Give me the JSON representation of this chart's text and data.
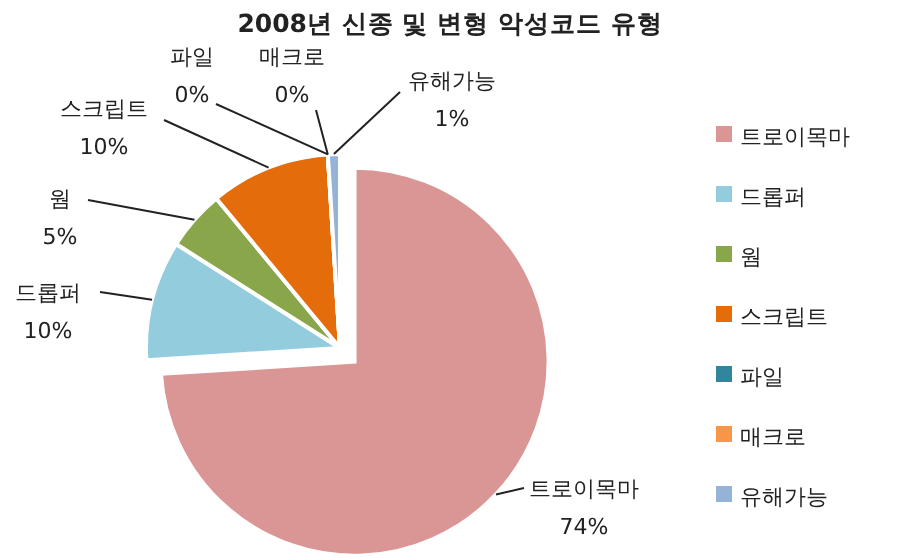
{
  "chart_data": {
    "type": "pie",
    "title": "2008년 신종 및 변형 악성코드 유형",
    "categories": [
      "트로이목마",
      "드롭퍼",
      "웜",
      "스크립트",
      "파일",
      "매크로",
      "유해가능"
    ],
    "values": [
      74,
      10,
      5,
      10,
      0,
      0,
      1
    ],
    "value_labels": [
      "74%",
      "10%",
      "5%",
      "10%",
      "0%",
      "0%",
      "1%"
    ],
    "colors": [
      "#d99694",
      "#93cddd",
      "#8aa64a",
      "#e46c0a",
      "#31859c",
      "#f79646",
      "#95b3d7"
    ],
    "legend": "right"
  }
}
